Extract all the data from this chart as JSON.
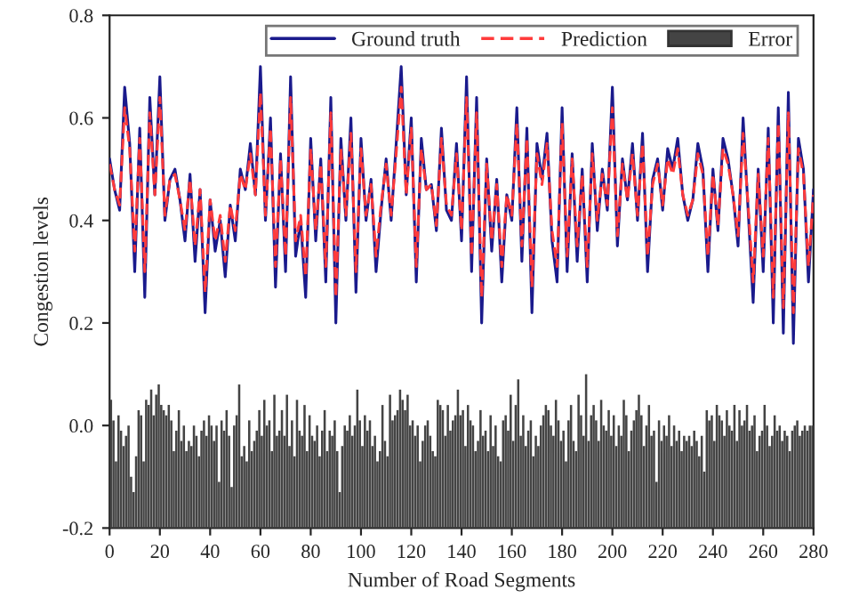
{
  "chart_data": {
    "type": "line",
    "xlabel": "Number of Road Segments",
    "ylabel": "Congestion levels",
    "xlim": [
      0,
      280
    ],
    "xticks": [
      0,
      20,
      40,
      60,
      80,
      100,
      120,
      140,
      160,
      180,
      200,
      220,
      240,
      260,
      280
    ],
    "ylim": [
      -0.2,
      0.8
    ],
    "yticks": [
      {
        "value": -0.2,
        "label": "-0.2"
      },
      {
        "value": 0.0,
        "label": "0.0"
      },
      {
        "value": 0.2,
        "label": "0.2"
      },
      {
        "value": 0.4,
        "label": "0.4"
      },
      {
        "value": 0.6,
        "label": "0.6"
      },
      {
        "value": 0.8,
        "label": "0.8"
      }
    ],
    "grid": false,
    "legend": "top",
    "marker": "none",
    "x": [
      0,
      2,
      4,
      6,
      8,
      10,
      12,
      14,
      16,
      18,
      20,
      22,
      24,
      26,
      28,
      30,
      32,
      34,
      36,
      38,
      40,
      42,
      44,
      46,
      48,
      50,
      52,
      54,
      56,
      58,
      60,
      62,
      64,
      66,
      68,
      70,
      72,
      74,
      76,
      78,
      80,
      82,
      84,
      86,
      88,
      90,
      92,
      94,
      96,
      98,
      100,
      102,
      104,
      106,
      108,
      110,
      112,
      114,
      116,
      118,
      120,
      122,
      124,
      126,
      128,
      130,
      132,
      134,
      136,
      138,
      140,
      142,
      144,
      146,
      148,
      150,
      152,
      154,
      156,
      158,
      160,
      162,
      164,
      166,
      168,
      170,
      172,
      174,
      176,
      178,
      180,
      182,
      184,
      186,
      188,
      190,
      192,
      194,
      196,
      198,
      200,
      202,
      204,
      206,
      208,
      210,
      212,
      214,
      216,
      218,
      220,
      222,
      224,
      226,
      228,
      230,
      232,
      234,
      236,
      238,
      240,
      242,
      244,
      246,
      248,
      250,
      252,
      254,
      256,
      258,
      260,
      262,
      264,
      266,
      268,
      270,
      272,
      274,
      276,
      278,
      280
    ],
    "series": [
      {
        "name": "Ground truth",
        "color": "#1a1a8c",
        "line_style": "solid",
        "values": [
          0.52,
          0.46,
          0.42,
          0.66,
          0.55,
          0.3,
          0.58,
          0.25,
          0.64,
          0.45,
          0.68,
          0.4,
          0.48,
          0.5,
          0.44,
          0.36,
          0.49,
          0.32,
          0.46,
          0.22,
          0.44,
          0.34,
          0.4,
          0.29,
          0.43,
          0.36,
          0.5,
          0.46,
          0.55,
          0.45,
          0.7,
          0.4,
          0.6,
          0.27,
          0.53,
          0.3,
          0.68,
          0.33,
          0.4,
          0.25,
          0.56,
          0.36,
          0.52,
          0.28,
          0.64,
          0.2,
          0.56,
          0.4,
          0.6,
          0.26,
          0.56,
          0.4,
          0.48,
          0.3,
          0.42,
          0.52,
          0.4,
          0.55,
          0.7,
          0.45,
          0.6,
          0.28,
          0.56,
          0.46,
          0.47,
          0.38,
          0.58,
          0.42,
          0.4,
          0.55,
          0.36,
          0.68,
          0.3,
          0.64,
          0.2,
          0.52,
          0.34,
          0.48,
          0.28,
          0.45,
          0.4,
          0.62,
          0.32,
          0.58,
          0.22,
          0.55,
          0.48,
          0.57,
          0.36,
          0.28,
          0.62,
          0.3,
          0.53,
          0.32,
          0.5,
          0.28,
          0.55,
          0.38,
          0.5,
          0.42,
          0.66,
          0.35,
          0.52,
          0.44,
          0.55,
          0.4,
          0.57,
          0.3,
          0.48,
          0.52,
          0.42,
          0.54,
          0.5,
          0.56,
          0.45,
          0.4,
          0.44,
          0.55,
          0.5,
          0.3,
          0.5,
          0.38,
          0.56,
          0.52,
          0.45,
          0.35,
          0.6,
          0.42,
          0.24,
          0.5,
          0.3,
          0.58,
          0.2,
          0.62,
          0.18,
          0.65,
          0.16,
          0.56,
          0.5,
          0.28,
          0.46
        ]
      },
      {
        "name": "Prediction",
        "color": "#ff3b3b",
        "line_style": "dashed",
        "values": [
          0.51,
          0.46,
          0.43,
          0.62,
          0.54,
          0.34,
          0.56,
          0.3,
          0.61,
          0.45,
          0.64,
          0.41,
          0.48,
          0.49,
          0.44,
          0.38,
          0.48,
          0.35,
          0.46,
          0.26,
          0.44,
          0.36,
          0.41,
          0.32,
          0.43,
          0.38,
          0.49,
          0.46,
          0.53,
          0.45,
          0.65,
          0.41,
          0.58,
          0.31,
          0.52,
          0.33,
          0.64,
          0.36,
          0.41,
          0.29,
          0.54,
          0.38,
          0.51,
          0.31,
          0.61,
          0.25,
          0.54,
          0.41,
          0.57,
          0.3,
          0.54,
          0.41,
          0.47,
          0.33,
          0.43,
          0.51,
          0.41,
          0.53,
          0.66,
          0.45,
          0.58,
          0.31,
          0.54,
          0.46,
          0.47,
          0.39,
          0.56,
          0.43,
          0.41,
          0.53,
          0.38,
          0.64,
          0.33,
          0.61,
          0.25,
          0.51,
          0.36,
          0.47,
          0.31,
          0.45,
          0.41,
          0.59,
          0.35,
          0.56,
          0.27,
          0.53,
          0.47,
          0.55,
          0.38,
          0.31,
          0.59,
          0.33,
          0.52,
          0.35,
          0.49,
          0.31,
          0.53,
          0.4,
          0.49,
          0.43,
          0.62,
          0.37,
          0.51,
          0.44,
          0.53,
          0.41,
          0.55,
          0.33,
          0.47,
          0.51,
          0.43,
          0.52,
          0.49,
          0.54,
          0.45,
          0.41,
          0.44,
          0.53,
          0.49,
          0.33,
          0.49,
          0.39,
          0.54,
          0.51,
          0.45,
          0.37,
          0.57,
          0.43,
          0.28,
          0.49,
          0.33,
          0.56,
          0.25,
          0.59,
          0.23,
          0.61,
          0.22,
          0.54,
          0.49,
          0.31,
          0.45
        ]
      },
      {
        "name": "Error",
        "type": "bar",
        "color": "#444444",
        "x": [
          1,
          2,
          3,
          4,
          5,
          6,
          7,
          8,
          9,
          10,
          11,
          12,
          13,
          14,
          15,
          16,
          17,
          18,
          19,
          20,
          21,
          22,
          23,
          24,
          25,
          26,
          27,
          28,
          29,
          30,
          31,
          32,
          33,
          34,
          35,
          36,
          37,
          38,
          39,
          40,
          41,
          42,
          43,
          44,
          45,
          46,
          47,
          48,
          49,
          50,
          51,
          52,
          53,
          54,
          55,
          56,
          57,
          58,
          59,
          60,
          61,
          62,
          63,
          64,
          65,
          66,
          67,
          68,
          69,
          70,
          71,
          72,
          73,
          74,
          75,
          76,
          77,
          78,
          79,
          80,
          81,
          82,
          83,
          84,
          85,
          86,
          87,
          88,
          89,
          90,
          91,
          92,
          93,
          94,
          95,
          96,
          97,
          98,
          99,
          100,
          101,
          102,
          103,
          104,
          105,
          106,
          107,
          108,
          109,
          110,
          111,
          112,
          113,
          114,
          115,
          116,
          117,
          118,
          119,
          120,
          121,
          122,
          123,
          124,
          125,
          126,
          127,
          128,
          129,
          130,
          131,
          132,
          133,
          134,
          135,
          136,
          137,
          138,
          139,
          140,
          141,
          142,
          143,
          144,
          145,
          146,
          147,
          148,
          149,
          150,
          151,
          152,
          153,
          154,
          155,
          156,
          157,
          158,
          159,
          160,
          161,
          162,
          163,
          164,
          165,
          166,
          167,
          168,
          169,
          170,
          171,
          172,
          173,
          174,
          175,
          176,
          177,
          178,
          179,
          180,
          181,
          182,
          183,
          184,
          185,
          186,
          187,
          188,
          189,
          190,
          191,
          192,
          193,
          194,
          195,
          196,
          197,
          198,
          199,
          200,
          201,
          202,
          203,
          204,
          205,
          206,
          207,
          208,
          209,
          210,
          211,
          212,
          213,
          214,
          215,
          216,
          217,
          218,
          219,
          220,
          221,
          222,
          223,
          224,
          225,
          226,
          227,
          228,
          229,
          230,
          231,
          232,
          233,
          234,
          235,
          236,
          237,
          238,
          239,
          240,
          241,
          242,
          243,
          244,
          245,
          246,
          247,
          248,
          249,
          250,
          251,
          252,
          253,
          254,
          255,
          256,
          257,
          258,
          259,
          260,
          261,
          262,
          263,
          264,
          265,
          266,
          267,
          268,
          269,
          270,
          271,
          272,
          273,
          274,
          275,
          276,
          277,
          278,
          279,
          280
        ],
        "base": [
          -0.2,
          -0.2,
          -0.2,
          -0.2,
          -0.2,
          -0.2,
          -0.2,
          -0.2,
          -0.2,
          -0.2,
          -0.2,
          -0.2,
          -0.2,
          -0.2,
          -0.2,
          -0.2,
          -0.2,
          -0.2,
          -0.2,
          -0.2,
          -0.2,
          -0.2,
          -0.2,
          -0.2,
          -0.2,
          -0.2,
          -0.2,
          -0.2,
          -0.2,
          -0.2,
          -0.2,
          -0.2,
          -0.2,
          -0.2,
          -0.2,
          -0.2,
          -0.2,
          -0.2,
          -0.2,
          -0.2,
          -0.2,
          -0.2,
          -0.2,
          -0.2,
          -0.2,
          -0.2,
          -0.2,
          -0.2,
          -0.2,
          -0.2,
          -0.2,
          -0.2,
          -0.2,
          -0.2,
          -0.2,
          -0.2,
          -0.2,
          -0.2,
          -0.2,
          -0.2,
          -0.2,
          -0.2,
          -0.2,
          -0.2,
          -0.2,
          -0.2,
          -0.2,
          -0.2,
          -0.2,
          -0.2,
          -0.2,
          -0.2,
          -0.2,
          -0.2,
          -0.2,
          -0.2,
          -0.2,
          -0.2,
          -0.2,
          -0.2,
          -0.2,
          -0.2,
          -0.2,
          -0.2,
          -0.2,
          -0.2,
          -0.2,
          -0.2,
          -0.2,
          -0.2,
          -0.2,
          -0.2,
          -0.2,
          -0.2,
          -0.2,
          -0.2,
          -0.2,
          -0.2,
          -0.2,
          -0.2,
          -0.2,
          -0.2,
          -0.2,
          -0.2,
          -0.2,
          -0.2,
          -0.2,
          -0.2,
          -0.2,
          -0.2,
          -0.2,
          -0.2,
          -0.2,
          -0.2,
          -0.2,
          -0.2,
          -0.2,
          -0.2,
          -0.2,
          -0.2,
          -0.2,
          -0.2,
          -0.2,
          -0.2,
          -0.2,
          -0.2,
          -0.2,
          -0.2,
          -0.2,
          -0.2,
          -0.2,
          -0.2,
          -0.2,
          -0.2,
          -0.2,
          -0.2,
          -0.2,
          -0.2,
          -0.2,
          -0.2,
          -0.2,
          -0.2,
          -0.2,
          -0.2,
          -0.2,
          -0.2,
          -0.2,
          -0.2,
          -0.2,
          -0.2,
          -0.2,
          -0.2,
          -0.2,
          -0.2,
          -0.2,
          -0.2,
          -0.2,
          -0.2,
          -0.2,
          -0.2,
          -0.2,
          -0.2,
          -0.2,
          -0.2,
          -0.2,
          -0.2,
          -0.2,
          -0.2,
          -0.2,
          -0.2,
          -0.2,
          -0.2,
          -0.2,
          -0.2,
          -0.2,
          -0.2,
          -0.2,
          -0.2,
          -0.2,
          -0.2,
          -0.2,
          -0.2,
          -0.2,
          -0.2,
          -0.2,
          -0.2,
          -0.2,
          -0.2,
          -0.2,
          -0.2,
          -0.2,
          -0.2,
          -0.2,
          -0.2,
          -0.2,
          -0.2,
          -0.2,
          -0.2,
          -0.2,
          -0.2,
          -0.2,
          -0.2,
          -0.2,
          -0.2,
          -0.2,
          -0.2,
          -0.2,
          -0.2,
          -0.2,
          -0.2,
          -0.2,
          -0.2,
          -0.2,
          -0.2,
          -0.2,
          -0.2,
          -0.2,
          -0.2,
          -0.2,
          -0.2,
          -0.2,
          -0.2,
          -0.2,
          -0.2,
          -0.2,
          -0.2,
          -0.2,
          -0.2,
          -0.2,
          -0.2,
          -0.2,
          -0.2,
          -0.2,
          -0.2,
          -0.2,
          -0.2,
          -0.2,
          -0.2,
          -0.2,
          -0.2,
          -0.2,
          -0.2,
          -0.2,
          -0.2,
          -0.2,
          -0.2,
          -0.2,
          -0.2,
          -0.2,
          -0.2,
          -0.2,
          -0.2,
          -0.2,
          -0.2,
          -0.2,
          -0.2,
          -0.2,
          -0.2,
          -0.2,
          -0.2,
          -0.2,
          -0.2,
          -0.2,
          -0.2,
          -0.2,
          -0.2,
          -0.2,
          -0.2,
          -0.2,
          -0.2,
          -0.2,
          -0.2,
          -0.2,
          -0.2,
          -0.2,
          -0.2,
          -0.2,
          -0.2,
          -0.2,
          -0.2
        ],
        "values": [
          0.25,
          0.21,
          0.13,
          0.22,
          0.19,
          0.16,
          0.18,
          0.2,
          0.1,
          0.07,
          0.14,
          0.23,
          0.22,
          0.13,
          0.25,
          0.24,
          0.27,
          0.22,
          0.26,
          0.28,
          0.24,
          0.23,
          0.22,
          0.24,
          0.21,
          0.15,
          0.19,
          0.23,
          0.17,
          0.2,
          0.15,
          0.17,
          0.16,
          0.2,
          0.18,
          0.14,
          0.19,
          0.21,
          0.18,
          0.22,
          0.2,
          0.17,
          0.2,
          0.09,
          0.21,
          0.19,
          0.23,
          0.18,
          0.08,
          0.2,
          0.22,
          0.28,
          0.14,
          0.16,
          0.13,
          0.21,
          0.15,
          0.17,
          0.19,
          0.23,
          0.18,
          0.25,
          0.2,
          0.21,
          0.15,
          0.26,
          0.18,
          0.19,
          0.23,
          0.18,
          0.26,
          0.16,
          0.21,
          0.14,
          0.25,
          0.19,
          0.18,
          0.24,
          0.15,
          0.22,
          0.18,
          0.17,
          0.2,
          0.14,
          0.19,
          0.23,
          0.15,
          0.19,
          0.18,
          0.21,
          0.15,
          0.07,
          0.16,
          0.2,
          0.19,
          0.22,
          0.18,
          0.2,
          0.27,
          0.21,
          0.16,
          0.22,
          0.19,
          0.21,
          0.16,
          0.18,
          0.13,
          0.15,
          0.24,
          0.17,
          0.14,
          0.26,
          0.21,
          0.22,
          0.23,
          0.27,
          0.25,
          0.23,
          0.26,
          0.2,
          0.21,
          0.18,
          0.2,
          0.13,
          0.17,
          0.2,
          0.21,
          0.18,
          0.15,
          0.14,
          0.25,
          0.24,
          0.23,
          0.18,
          0.24,
          0.19,
          0.21,
          0.22,
          0.27,
          0.22,
          0.23,
          0.16,
          0.24,
          0.21,
          0.2,
          0.15,
          0.17,
          0.23,
          0.18,
          0.19,
          0.15,
          0.22,
          0.16,
          0.2,
          0.14,
          0.13,
          0.21,
          0.22,
          0.19,
          0.26,
          0.17,
          0.24,
          0.29,
          0.18,
          0.22,
          0.16,
          0.19,
          0.21,
          0.14,
          0.18,
          0.16,
          0.2,
          0.22,
          0.24,
          0.23,
          0.2,
          0.18,
          0.25,
          0.21,
          0.17,
          0.19,
          0.13,
          0.21,
          0.24,
          0.17,
          0.15,
          0.26,
          0.22,
          0.18,
          0.3,
          0.17,
          0.22,
          0.24,
          0.21,
          0.17,
          0.25,
          0.2,
          0.19,
          0.23,
          0.18,
          0.22,
          0.16,
          0.2,
          0.18,
          0.25,
          0.22,
          0.15,
          0.19,
          0.21,
          0.23,
          0.26,
          0.22,
          0.16,
          0.2,
          0.24,
          0.18,
          0.19,
          0.09,
          0.21,
          0.17,
          0.2,
          0.18,
          0.22,
          0.16,
          0.2,
          0.17,
          0.19,
          0.15,
          0.18,
          0.17,
          0.18,
          0.16,
          0.19,
          0.17,
          0.14,
          0.18,
          0.11,
          0.23,
          0.21,
          0.22,
          0.17,
          0.24,
          0.22,
          0.21,
          0.18,
          0.23,
          0.2,
          0.19,
          0.24,
          0.17,
          0.23,
          0.2,
          0.21,
          0.24,
          0.19,
          0.2,
          0.22,
          0.15,
          0.18,
          0.19,
          0.24,
          0.2,
          0.16,
          0.18,
          0.22,
          0.19,
          0.2,
          0.17,
          0.19,
          0.18,
          0.15,
          0.19,
          0.2,
          0.21,
          0.18,
          0.19,
          0.2,
          0.19,
          0.2,
          0.2
        ]
      }
    ]
  }
}
